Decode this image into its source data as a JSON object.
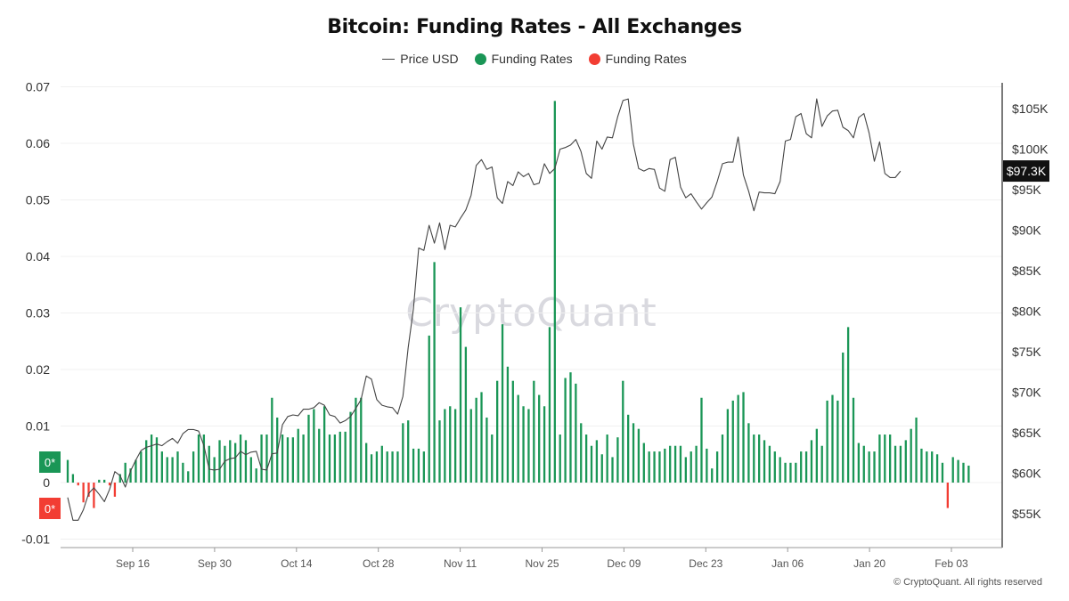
{
  "chart_data": {
    "type": "bar",
    "title": "Bitcoin: Funding Rates - All Exchanges",
    "legend": [
      {
        "label": "Price USD",
        "kind": "line",
        "color": "#444444"
      },
      {
        "label": "Funding Rates",
        "kind": "dot",
        "color": "#1a9656"
      },
      {
        "label": "Funding Rates",
        "kind": "dot",
        "color": "#f23d33"
      }
    ],
    "left_axis": {
      "ylim": [
        -0.01,
        0.07
      ],
      "ticks": [
        "0.07",
        "0.06",
        "0.05",
        "0.04",
        "0.03",
        "0.02",
        "0.01",
        "0",
        "-0.01"
      ]
    },
    "right_axis": {
      "ticks": [
        "$105K",
        "$100K",
        "$95K",
        "$90K",
        "$85K",
        "$80K",
        "$75K",
        "$70K",
        "$65K",
        "$60K",
        "$55K"
      ]
    },
    "x_ticks": [
      "Sep 16",
      "Sep 30",
      "Oct 14",
      "Oct 28",
      "Nov 11",
      "Nov 25",
      "Dec 09",
      "Dec 23",
      "Jan 06",
      "Jan 20",
      "Feb 03"
    ],
    "badges": {
      "positive": "0*",
      "negative": "0*",
      "last_price": "$97.3K"
    },
    "watermark": "CryptoQuant",
    "colors": {
      "positive": "#1a9656",
      "negative": "#f23d33",
      "price": "#444444"
    },
    "funding_rates": [
      0.004,
      0.0015,
      -0.0005,
      -0.0035,
      -0.0025,
      -0.0045,
      0.0005,
      0.0005,
      -0.0005,
      -0.0025,
      0.0015,
      0.0035,
      0.0025,
      0.004,
      0.0055,
      0.0075,
      0.0085,
      0.008,
      0.0055,
      0.0045,
      0.0045,
      0.0055,
      0.0035,
      0.002,
      0.0055,
      0.0085,
      0.0085,
      0.0065,
      0.0045,
      0.0075,
      0.0065,
      0.0075,
      0.007,
      0.0085,
      0.0075,
      0.0045,
      0.0025,
      0.0085,
      0.0085,
      0.015,
      0.0115,
      0.0085,
      0.008,
      0.008,
      0.0095,
      0.0085,
      0.012,
      0.013,
      0.0095,
      0.0135,
      0.0085,
      0.0085,
      0.009,
      0.009,
      0.0125,
      0.015,
      0.015,
      0.007,
      0.005,
      0.0055,
      0.0065,
      0.0055,
      0.0055,
      0.0055,
      0.0105,
      0.011,
      0.006,
      0.006,
      0.0055,
      0.026,
      0.039,
      0.011,
      0.013,
      0.0135,
      0.013,
      0.031,
      0.024,
      0.013,
      0.015,
      0.016,
      0.0115,
      0.0085,
      0.018,
      0.028,
      0.0205,
      0.018,
      0.0155,
      0.0135,
      0.013,
      0.018,
      0.0155,
      0.0135,
      0.0275,
      0.0675,
      0.0085,
      0.0185,
      0.0195,
      0.0175,
      0.0105,
      0.0085,
      0.0065,
      0.0075,
      0.005,
      0.0085,
      0.0045,
      0.008,
      0.018,
      0.012,
      0.0105,
      0.0095,
      0.007,
      0.0055,
      0.0055,
      0.0055,
      0.006,
      0.0065,
      0.0065,
      0.0065,
      0.0045,
      0.0055,
      0.0065,
      0.015,
      0.006,
      0.0025,
      0.0055,
      0.0085,
      0.013,
      0.0145,
      0.0155,
      0.016,
      0.0105,
      0.0085,
      0.0085,
      0.0075,
      0.0065,
      0.0055,
      0.0045,
      0.0035,
      0.0035,
      0.0035,
      0.0055,
      0.0055,
      0.0075,
      0.0095,
      0.0065,
      0.0145,
      0.0155,
      0.0145,
      0.023,
      0.0275,
      0.015,
      0.007,
      0.0065,
      0.0055,
      0.0055,
      0.0085,
      0.0085,
      0.0085,
      0.0065,
      0.0065,
      0.0075,
      0.0095,
      0.0115,
      0.006,
      0.0055,
      0.0055,
      0.005,
      0.0035,
      -0.0045,
      0.0045,
      0.004,
      0.0035,
      0.003
    ],
    "price_usd": [
      57000,
      54200,
      54200,
      55500,
      57500,
      58200,
      57400,
      56500,
      58000,
      60200,
      59700,
      58300,
      60300,
      61600,
      62800,
      63200,
      63400,
      63600,
      63400,
      63900,
      64300,
      63700,
      64900,
      65400,
      65400,
      65200,
      63400,
      60500,
      60400,
      60500,
      61500,
      61800,
      61900,
      62700,
      62300,
      62600,
      62700,
      60500,
      60400,
      62400,
      62500,
      66000,
      67000,
      67200,
      67100,
      67900,
      67900,
      68100,
      68700,
      68400,
      67200,
      67000,
      66200,
      66500,
      67000,
      68000,
      69100,
      72000,
      71600,
      69100,
      68400,
      68200,
      68100,
      67300,
      69500,
      75500,
      80300,
      87800,
      87500,
      90600,
      88400,
      90900,
      87600,
      90600,
      90400,
      91500,
      92500,
      94300,
      98000,
      98700,
      97500,
      97800,
      94000,
      93300,
      96000,
      95500,
      97200,
      96600,
      97000,
      95600,
      95800,
      98200,
      97000,
      97600,
      100000,
      100200,
      100500,
      101200,
      99700,
      97000,
      96400,
      101000,
      100000,
      101500,
      101400,
      104000,
      106000,
      106200,
      100600,
      97600,
      97300,
      97600,
      97500,
      95200,
      94800,
      98700,
      99000,
      95300,
      94000,
      94500,
      93500,
      92600,
      93400,
      94100,
      96000,
      98200,
      98400,
      98400,
      101500,
      96800,
      94800,
      92400,
      94700,
      94600,
      94600,
      94500,
      96000,
      101000,
      101200,
      104000,
      104400,
      101900,
      101400,
      106200,
      102800,
      104100,
      104700,
      104800,
      102700,
      102300,
      101400,
      103900,
      104400,
      102000,
      98500,
      100900,
      97000,
      96500,
      96500,
      97300
    ],
    "price_scale": {
      "ref1": {
        "price": 55000,
        "label": "$55K"
      },
      "ref2": {
        "price": 105000,
        "label": "$105K"
      }
    },
    "copyright": "© CryptoQuant. All rights reserved"
  }
}
